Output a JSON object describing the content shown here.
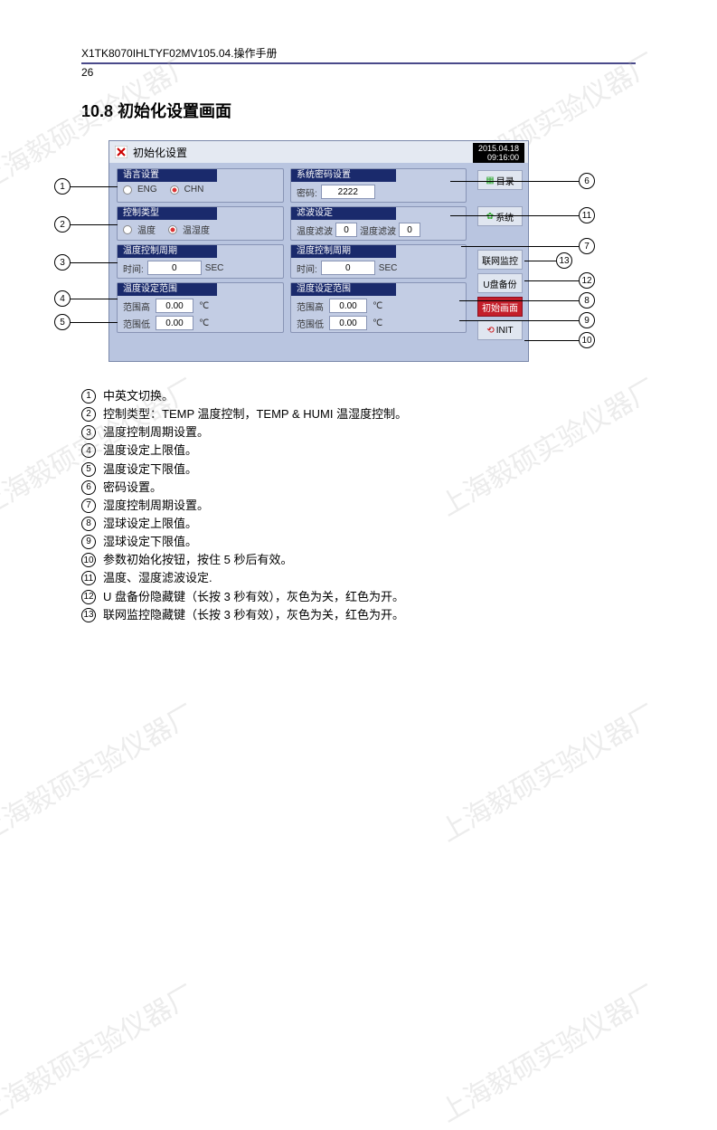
{
  "header": {
    "doc_id": "X1TK8070IHLTYF02MV105.04.操作手册",
    "page_number": "26"
  },
  "section": {
    "number": "10.8",
    "title": "初始化设置画面"
  },
  "watermark_text": "上海毅硕实验仪器厂",
  "device": {
    "window_title": "初始化设置",
    "date": "2015.04.18",
    "time": "09:16:00",
    "panels": {
      "lang": {
        "title": "语言设置",
        "opt1": "ENG",
        "opt2": "CHN"
      },
      "ctrl_type": {
        "title": "控制类型",
        "opt1": "温度",
        "opt2": "温湿度"
      },
      "temp_period": {
        "title": "温度控制周期",
        "label": "时间:",
        "value": "0",
        "unit": "SEC"
      },
      "temp_range": {
        "title": "温度设定范围",
        "hi_label": "范围高",
        "hi_value": "0.00",
        "lo_label": "范围低",
        "lo_value": "0.00",
        "unit": "℃"
      },
      "password": {
        "title": "系统密码设置",
        "label": "密码:",
        "value": "2222"
      },
      "filter": {
        "title": "滤波设定",
        "l1": "温度滤波",
        "v1": "0",
        "l2": "湿度滤波",
        "v2": "0"
      },
      "humi_period": {
        "title": "湿度控制周期",
        "label": "时间:",
        "value": "0",
        "unit": "SEC"
      },
      "humi_range": {
        "title": "湿度设定范围",
        "hi_label": "范围高",
        "hi_value": "0.00",
        "lo_label": "范围低",
        "lo_value": "0.00",
        "unit": "℃"
      }
    },
    "side_buttons": {
      "catalog": "目录",
      "system": "系统",
      "network": "联网监控",
      "udisk": "U盘备份",
      "init_screen": "初始画面",
      "init": "INIT"
    }
  },
  "descriptions": [
    "中英文切换。",
    "控制类型：TEMP 温度控制，TEMP & HUMI 温湿度控制。",
    "温度控制周期设置。",
    "温度设定上限值。",
    "温度设定下限值。",
    "密码设置。",
    "湿度控制周期设置。",
    "湿球设定上限值。",
    "湿球设定下限值。",
    "参数初始化按钮，按住 5 秒后有效。",
    "温度、湿度滤波设定.",
    "U 盘备份隐藏键（长按 3 秒有效），灰色为关，红色为开。",
    "联网监控隐藏键（长按 3 秒有效），灰色为关，红色为开。"
  ],
  "colors": {
    "page_bg": "#ffffff",
    "device_bg": "#b9c5e0",
    "panel_bg": "#c3cde4",
    "panel_header": "#1a2a6c",
    "red_btn": "#c41e2a",
    "rule_color": "#4a4a8a"
  }
}
